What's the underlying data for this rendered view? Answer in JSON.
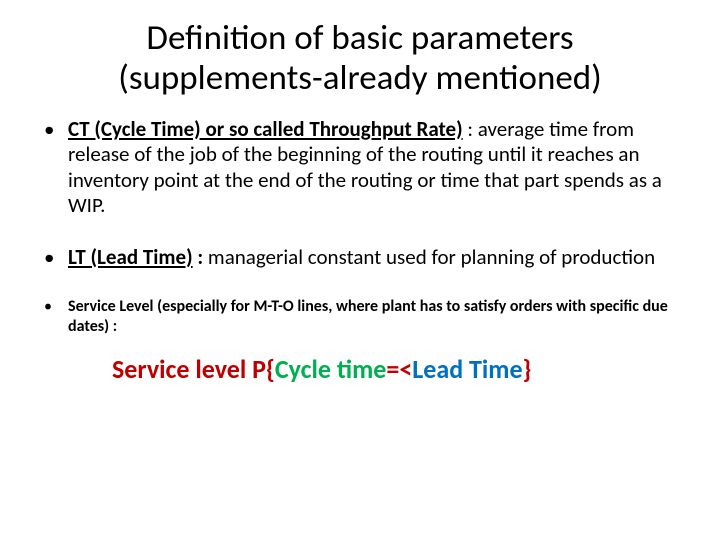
{
  "title_line1": "Definition of basic parameters",
  "title_line2": "(supplements-already mentioned)",
  "bullet1": {
    "lead": "CT (Cycle Time) or so called Throughput Rate)",
    "rest": " : average time from release of the job of the beginning of the routing until it reaches an inventory point at the end of the routing  or time that part spends as a WIP."
  },
  "bullet2": {
    "lead": "LT (Lead Time)",
    "colon": " : ",
    "rest": "managerial constant used for planning of production"
  },
  "bullet3": {
    "text": "Service Level  (especially for M-T-O lines, where plant has to satisfy orders with specific due dates)  :"
  },
  "formula": {
    "p1": "Service level P{",
    "p2": "Cycle time",
    "p3": "=<",
    "p4": "Lead Time",
    "p5": "}"
  },
  "colors": {
    "red": "#c00000",
    "green": "#00b050",
    "blue": "#0070c0"
  }
}
